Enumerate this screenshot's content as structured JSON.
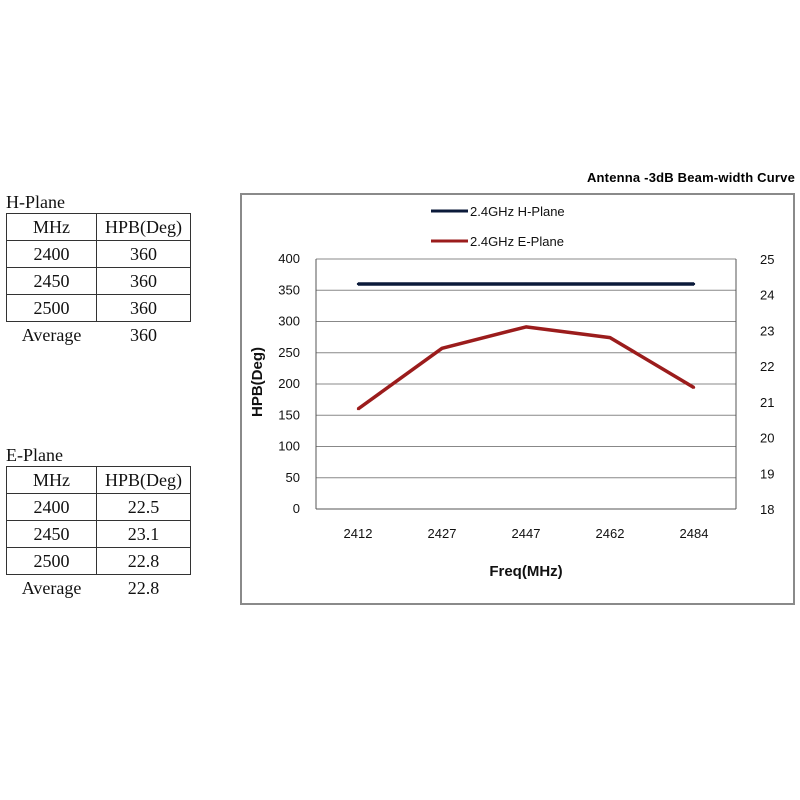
{
  "h_plane": {
    "title": "H-Plane",
    "headers": [
      "MHz",
      "HPB(Deg)"
    ],
    "rows": [
      [
        "2400",
        "360"
      ],
      [
        "2450",
        "360"
      ],
      [
        "2500",
        "360"
      ]
    ],
    "average": [
      "Average",
      "360"
    ]
  },
  "e_plane": {
    "title": "E-Plane",
    "headers": [
      "MHz",
      "HPB(Deg)"
    ],
    "rows": [
      [
        "2400",
        "22.5"
      ],
      [
        "2450",
        "23.1"
      ],
      [
        "2500",
        "22.8"
      ]
    ],
    "average": [
      "Average",
      "22.8"
    ]
  },
  "chart_data": {
    "type": "line",
    "title": "Antenna -3dB Beam-width Curve",
    "xlabel": "Freq(MHz)",
    "ylabel": "HPB(Deg)",
    "categories": [
      "2412",
      "2427",
      "2447",
      "2462",
      "2484"
    ],
    "ylim": [
      0,
      400
    ],
    "y_ticks": [
      0,
      50,
      100,
      150,
      200,
      250,
      300,
      350,
      400
    ],
    "y2lim": [
      18,
      25
    ],
    "y2_ticks": [
      18,
      19,
      20,
      21,
      22,
      23,
      24,
      25
    ],
    "grid": true,
    "legend_position": "top",
    "series": [
      {
        "name": "2.4GHz H-Plane",
        "axis": "left",
        "color": "#0b1a3a",
        "values": [
          360,
          360,
          360,
          360,
          360
        ]
      },
      {
        "name": "2.4GHz E-Plane",
        "axis": "right",
        "color": "#9b1c1c",
        "values": [
          20.8,
          22.5,
          23.1,
          22.8,
          21.4
        ]
      }
    ]
  }
}
